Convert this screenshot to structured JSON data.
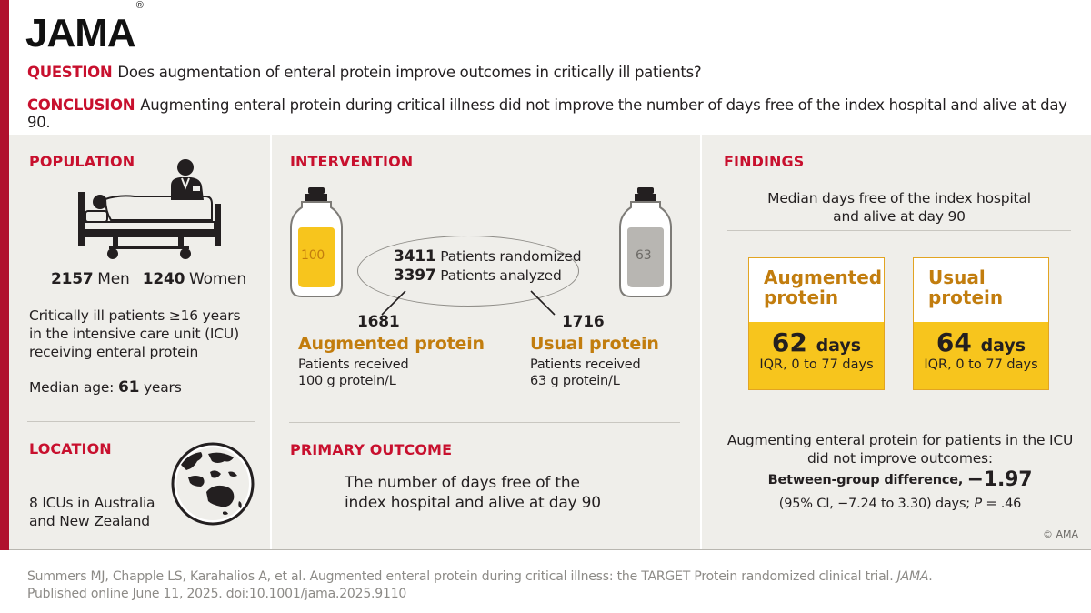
{
  "header": {
    "logo": "JAMA",
    "question_tag": "QUESTION",
    "question": "Does augmentation of enteral protein improve outcomes in critically ill patients?",
    "conclusion_tag": "CONCLUSION",
    "conclusion": "Augmenting enteral protein during critical illness did not improve the number of days free of the index hospital and alive at day 90."
  },
  "population": {
    "title": "POPULATION",
    "men_count": "2157",
    "men_label": "Men",
    "women_count": "1240",
    "women_label": "Women",
    "description_lines": [
      "Critically ill patients ≥16 years",
      "in the intensive care unit (ICU)",
      "receiving enteral protein"
    ],
    "median_age_label": "Median age:",
    "median_age_value": "61",
    "median_age_unit": "years"
  },
  "location": {
    "title": "LOCATION",
    "lines": [
      "8 ICUs in Australia",
      "and New Zealand"
    ]
  },
  "intervention": {
    "title": "INTERVENTION",
    "bottle_left_label": "100",
    "bottle_right_label": "63",
    "randomized_count": "3411",
    "randomized_label": "Patients randomized",
    "analyzed_count": "3397",
    "analyzed_label": "Patients analyzed",
    "augmented": {
      "count": "1681",
      "name": "Augmented protein",
      "desc_lines": [
        "Patients received",
        "100 g protein/L"
      ]
    },
    "usual": {
      "count": "1716",
      "name": "Usual protein",
      "desc_lines": [
        "Patients received",
        "63 g protein/L"
      ]
    }
  },
  "primary_outcome": {
    "title": "PRIMARY OUTCOME",
    "lines": [
      "The number of days free of the",
      "index hospital and alive at day 90"
    ]
  },
  "findings": {
    "title": "FINDINGS",
    "subtitle_lines": [
      "Median days free of the index hospital",
      "and alive at day 90"
    ],
    "augmented_box": {
      "title_lines": [
        "Augmented",
        "protein"
      ],
      "value": "62",
      "unit": "days",
      "iqr": "IQR, 0 to 77 days"
    },
    "usual_box": {
      "title_lines": [
        "Usual",
        "protein"
      ],
      "value": "64",
      "unit": "days",
      "iqr": "IQR, 0 to 77 days"
    },
    "summary_lines": [
      "Augmenting enteral protein for patients in the ICU",
      "did not improve outcomes:"
    ],
    "diff_label": "Between-group difference,",
    "diff_value": "−1.97",
    "ci_text": "(95% CI, −7.24 to 3.30) days; ",
    "p_label": "P",
    "p_value": " = .46",
    "copyright": "© AMA"
  },
  "citation": {
    "line1_main": "Summers MJ, Chapple LS, Karahalios A, et al. Augmented enteral protein during critical illness: the TARGET Protein randomized clinical trial. ",
    "line1_journal": "JAMA",
    "line1_end": ".",
    "line2": "Published online June 11, 2025. doi:10.1001/jama.2025.9110"
  },
  "colors": {
    "red": "#c8102e",
    "gold_text": "#c27d0e",
    "yellow": "#f7c51d",
    "panel": "#efeeea"
  },
  "icons": [
    "hospital-bed-icon",
    "nurse-icon",
    "globe-icon",
    "enteral-bottle-icon"
  ]
}
